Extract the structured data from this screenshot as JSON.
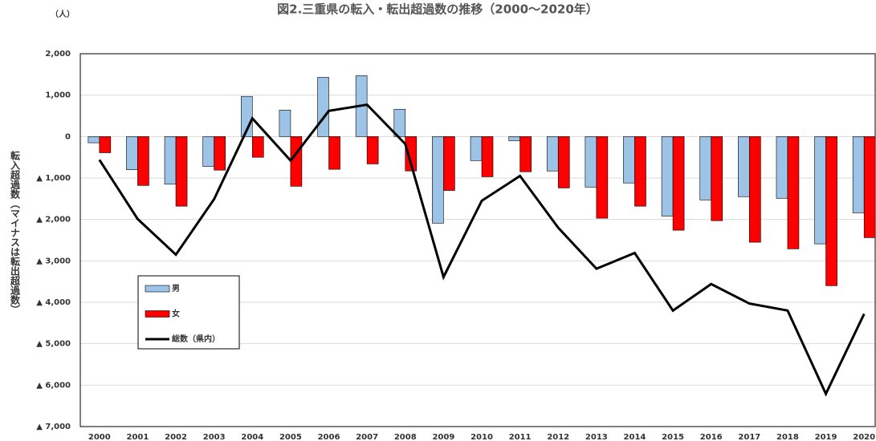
{
  "chart_data": {
    "type": "bar_line",
    "title": "図2.三重県の転入・転出超過数の推移（2000〜2020年）",
    "unit_label": "（人）",
    "y_label": "転入超過数（マイナスは転出超過数）",
    "categories": [
      "2000",
      "2001",
      "2002",
      "2003",
      "2004",
      "2005",
      "2006",
      "2007",
      "2008",
      "2009",
      "2010",
      "2011",
      "2012",
      "2013",
      "2014",
      "2015",
      "2016",
      "2017",
      "2018",
      "2019",
      "2020"
    ],
    "series": [
      {
        "name": "男",
        "color": "#9dc3e6",
        "kind": "bar",
        "values": [
          -150,
          -800,
          -1150,
          -720,
          970,
          640,
          1430,
          1470,
          660,
          -2090,
          -580,
          -100,
          -830,
          -1220,
          -1120,
          -1920,
          -1530,
          -1450,
          -1490,
          -2590,
          -1840
        ]
      },
      {
        "name": "女",
        "color": "#ff0000",
        "kind": "bar",
        "values": [
          -390,
          -1180,
          -1680,
          -810,
          -500,
          -1200,
          -790,
          -660,
          -830,
          -1300,
          -970,
          -850,
          -1240,
          -1970,
          -1680,
          -2260,
          -2030,
          -2550,
          -2710,
          -3600,
          -2440
        ]
      },
      {
        "name": "総数（県内）",
        "color": "#000000",
        "kind": "line",
        "values": [
          -560,
          -1990,
          -2850,
          -1510,
          440,
          -580,
          620,
          770,
          -180,
          -3390,
          -1550,
          -950,
          -2200,
          -3190,
          -2810,
          -4200,
          -3560,
          -4030,
          -4200,
          -6210,
          -4280
        ]
      }
    ],
    "ylim": [
      -7000,
      2000
    ],
    "yticks": [
      {
        "value": 2000,
        "label": "2,000"
      },
      {
        "value": 1000,
        "label": "1,000"
      },
      0,
      {
        "value": -1000,
        "label": "▲ 1,000"
      },
      {
        "value": -2000,
        "label": "▲ 2,000"
      },
      {
        "value": -3000,
        "label": "▲ 3,000"
      },
      {
        "value": -4000,
        "label": "▲ 4,000"
      },
      {
        "value": -5000,
        "label": "▲ 5,000"
      },
      {
        "value": -6000,
        "label": "▲ 6,000"
      },
      {
        "value": -7000,
        "label": "▲ 7,000"
      }
    ],
    "grid": true
  }
}
